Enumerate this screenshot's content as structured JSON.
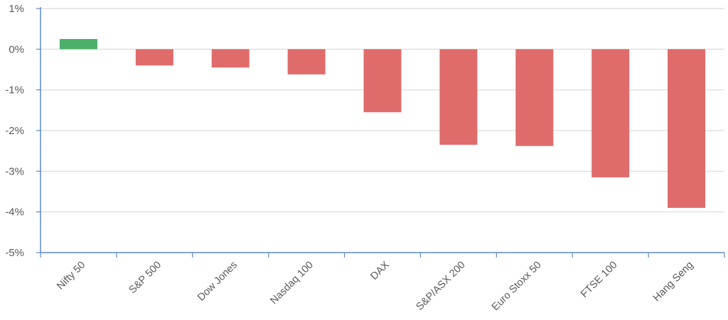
{
  "chart_data": {
    "type": "bar",
    "title": "",
    "xlabel": "",
    "ylabel": "",
    "categories": [
      "Nifty 50",
      "S&P 500",
      "Dow Jones",
      "Nasdaq 100",
      "DAX",
      "S&P/ASX 200",
      "Euro Stoxx 50",
      "FTSE 100",
      "Hang Seng"
    ],
    "values": [
      0.25,
      -0.4,
      -0.45,
      -0.62,
      -1.55,
      -2.35,
      -2.38,
      -3.15,
      -3.9
    ],
    "ylim": [
      -5,
      1
    ],
    "yticks": [
      1,
      0,
      -1,
      -2,
      -3,
      -4,
      -5
    ],
    "ytick_labels": [
      "1%",
      "0%",
      "-1%",
      "-2%",
      "-3%",
      "-4%",
      "-5%"
    ],
    "grid": true,
    "legend": "none",
    "colors": {
      "positive": "#4caf6a",
      "negative": "#e06b6b",
      "axis": "#5b8ac6",
      "grid": "#d9d9d9",
      "text": "#595959"
    }
  }
}
